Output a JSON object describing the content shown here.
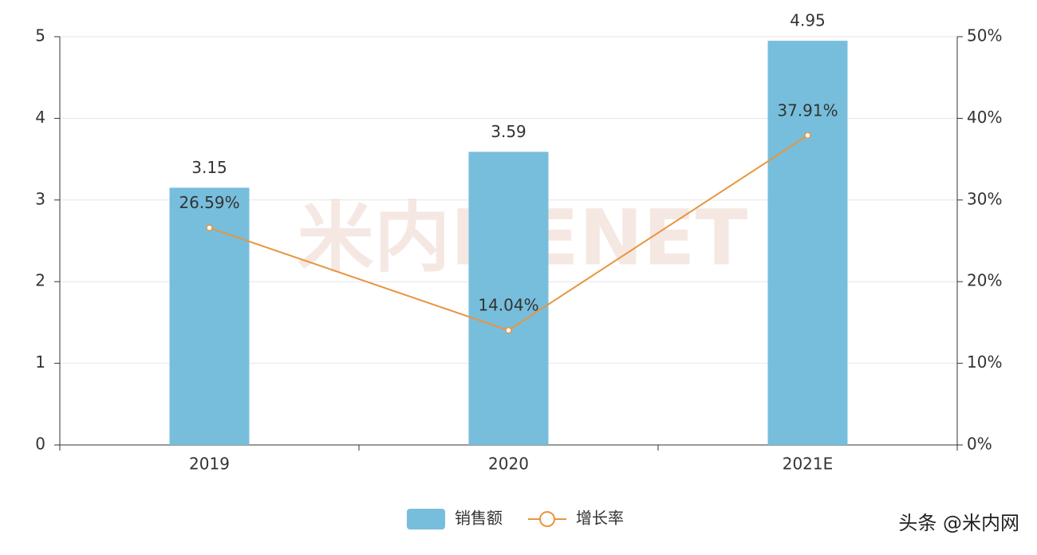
{
  "chart_data": {
    "type": "bar",
    "categories": [
      "2019",
      "2020",
      "2021E"
    ],
    "series": [
      {
        "name": "销售额",
        "type": "bar",
        "color": "#77bedc",
        "values": [
          3.15,
          3.59,
          4.95
        ]
      },
      {
        "name": "增长率",
        "type": "line",
        "axis": "y2",
        "color": "#e8953f",
        "values": [
          26.59,
          14.04,
          37.91
        ],
        "value_labels": [
          "26.59%",
          "14.04%",
          "37.91%"
        ]
      }
    ],
    "ylim": [
      0,
      5
    ],
    "yticks": [
      0,
      1,
      2,
      3,
      4,
      5
    ],
    "y2lim": [
      0,
      50
    ],
    "y2ticks": [
      {
        "value": 0,
        "label": "0%"
      },
      {
        "value": 10,
        "label": "10%"
      },
      {
        "value": 20,
        "label": "20%"
      },
      {
        "value": 30,
        "label": "30%"
      },
      {
        "value": 40,
        "label": "40%"
      },
      {
        "value": 50,
        "label": "50%"
      }
    ],
    "grid": true,
    "legend": "bottom",
    "watermark": "米内MENET",
    "source": "头条 @米内网"
  }
}
